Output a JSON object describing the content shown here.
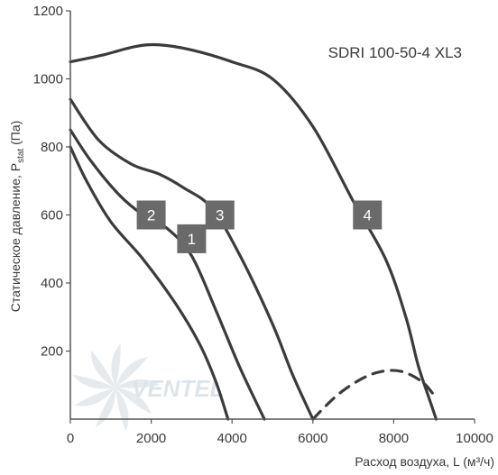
{
  "chart_data": {
    "type": "line",
    "title": "SDRI 100-50-4 XL3",
    "xlabel": "Расход воздуха, L (м³/ч)",
    "ylabel": {
      "prefix": "Статическое давление, P",
      "subscript": "stat",
      "suffix": " (Па)"
    },
    "xlim": [
      0,
      10000
    ],
    "ylim": [
      0,
      1200
    ],
    "xticks": [
      0,
      2000,
      4000,
      6000,
      8000,
      10000
    ],
    "yticks": [
      200,
      400,
      600,
      800,
      1000,
      1200
    ],
    "xtick_labels": [
      "0",
      "2000",
      "4000",
      "6000",
      "8000",
      "10000"
    ],
    "ytick_labels": [
      "200",
      "400",
      "600",
      "800",
      "1000",
      "1200"
    ],
    "grid": false,
    "series": [
      {
        "name": "1",
        "label_pos": [
          3000,
          530
        ],
        "points": [
          [
            0,
            800
          ],
          [
            400,
            700
          ],
          [
            1000,
            580
          ],
          [
            1800,
            470
          ],
          [
            2600,
            340
          ],
          [
            3200,
            220
          ],
          [
            3600,
            110
          ],
          [
            3900,
            0
          ]
        ]
      },
      {
        "name": "2",
        "label_pos": [
          2000,
          600
        ],
        "points": [
          [
            0,
            850
          ],
          [
            500,
            760
          ],
          [
            1200,
            660
          ],
          [
            1800,
            600
          ],
          [
            2400,
            560
          ],
          [
            3000,
            480
          ],
          [
            3600,
            320
          ],
          [
            4200,
            150
          ],
          [
            4800,
            0
          ]
        ]
      },
      {
        "name": "3",
        "label_pos": [
          3700,
          600
        ],
        "points": [
          [
            0,
            940
          ],
          [
            700,
            820
          ],
          [
            1500,
            750
          ],
          [
            2200,
            720
          ],
          [
            2800,
            680
          ],
          [
            3500,
            620
          ],
          [
            4200,
            480
          ],
          [
            5000,
            280
          ],
          [
            5500,
            130
          ],
          [
            6000,
            0
          ]
        ]
      },
      {
        "name": "4",
        "label_pos": [
          7350,
          600
        ],
        "points": [
          [
            0,
            1050
          ],
          [
            800,
            1070
          ],
          [
            1600,
            1095
          ],
          [
            2200,
            1100
          ],
          [
            3000,
            1085
          ],
          [
            4000,
            1050
          ],
          [
            5000,
            1000
          ],
          [
            6000,
            860
          ],
          [
            7000,
            640
          ],
          [
            7800,
            470
          ],
          [
            8300,
            300
          ],
          [
            8600,
            160
          ],
          [
            8850,
            70
          ]
        ]
      },
      {
        "name": "",
        "style": "dashed",
        "points": [
          [
            6000,
            0
          ],
          [
            6600,
            70
          ],
          [
            7200,
            118
          ],
          [
            7700,
            140
          ],
          [
            8200,
            140
          ],
          [
            8700,
            110
          ],
          [
            9000,
            70
          ]
        ]
      },
      {
        "name": "",
        "style": "solid",
        "points": [
          [
            8850,
            70
          ],
          [
            9050,
            0
          ]
        ]
      }
    ],
    "watermark": "VENTEL"
  }
}
